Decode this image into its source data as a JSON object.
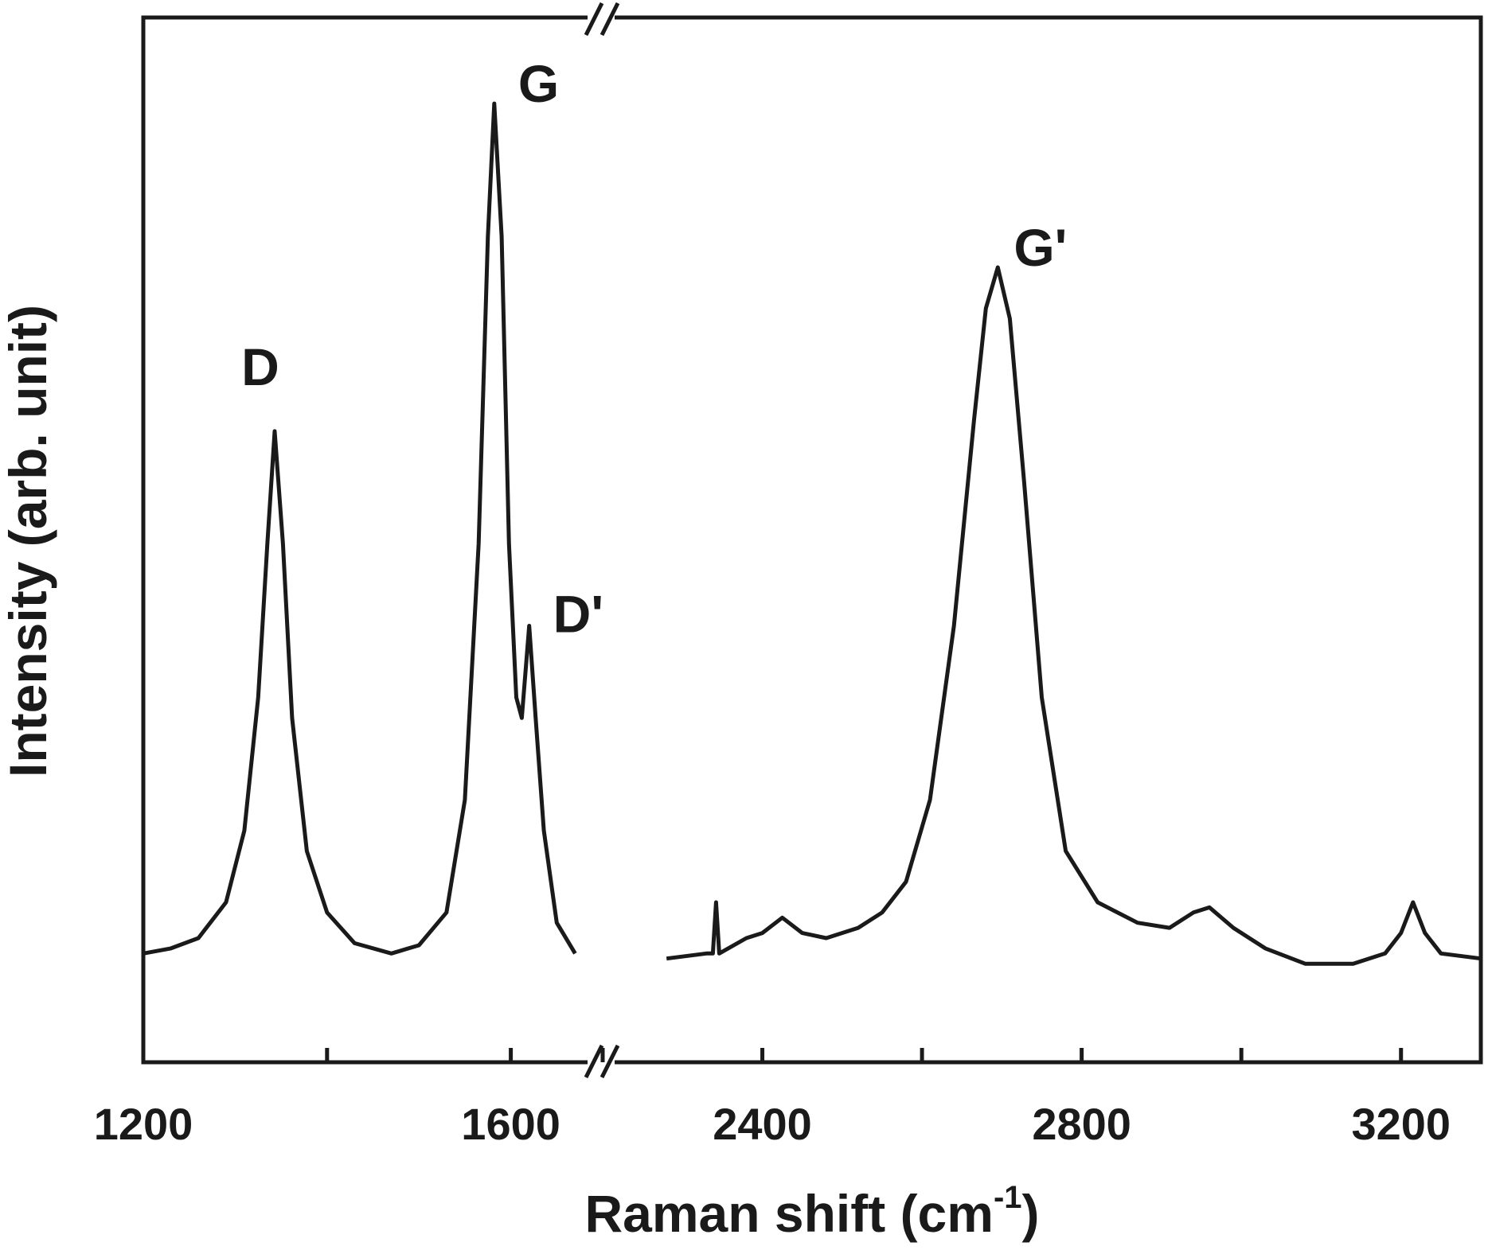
{
  "chart_data": {
    "type": "line",
    "title": "",
    "xlabel": "Raman shift (cm",
    "xlabel_superscript": "-1",
    "xlabel_suffix": ")",
    "ylabel": "Intensity (arb. unit)",
    "axis_break": {
      "left_segment_xlim": [
        1200,
        1700
      ],
      "right_segment_xlim": [
        2200,
        3300
      ]
    },
    "xlim": [
      1200,
      3300
    ],
    "ylim": [
      0,
      1
    ],
    "x_ticks": [
      1200,
      1600,
      2400,
      2800,
      3200
    ],
    "x_tick_labels": [
      "1200",
      "1600",
      "2400",
      "2800",
      "3200"
    ],
    "x_minor_ticks": [
      1400,
      2200,
      2600,
      3000
    ],
    "y_ticks_shown": false,
    "grid": false,
    "legend": "none",
    "line_color": "#1a1a1a",
    "peaks": [
      {
        "label": "D",
        "x": 1343,
        "y": 0.61
      },
      {
        "label": "G",
        "x": 1582,
        "y": 0.93
      },
      {
        "label": "D'",
        "x": 1620,
        "y": 0.42
      },
      {
        "label": "G'",
        "x": 2695,
        "y": 0.77
      }
    ],
    "series": [
      {
        "baseline": 0.1,
        "left_segment": [
          {
            "x": 1200,
            "y": 0.1
          },
          {
            "x": 1230,
            "y": 0.105
          },
          {
            "x": 1260,
            "y": 0.115
          },
          {
            "x": 1290,
            "y": 0.15
          },
          {
            "x": 1310,
            "y": 0.22
          },
          {
            "x": 1325,
            "y": 0.35
          },
          {
            "x": 1335,
            "y": 0.5
          },
          {
            "x": 1343,
            "y": 0.61
          },
          {
            "x": 1352,
            "y": 0.5
          },
          {
            "x": 1362,
            "y": 0.33
          },
          {
            "x": 1378,
            "y": 0.2
          },
          {
            "x": 1400,
            "y": 0.14
          },
          {
            "x": 1430,
            "y": 0.11
          },
          {
            "x": 1470,
            "y": 0.1
          },
          {
            "x": 1500,
            "y": 0.108
          },
          {
            "x": 1530,
            "y": 0.14
          },
          {
            "x": 1550,
            "y": 0.25
          },
          {
            "x": 1565,
            "y": 0.5
          },
          {
            "x": 1575,
            "y": 0.8
          },
          {
            "x": 1582,
            "y": 0.93
          },
          {
            "x": 1590,
            "y": 0.8
          },
          {
            "x": 1598,
            "y": 0.5
          },
          {
            "x": 1606,
            "y": 0.35
          },
          {
            "x": 1612,
            "y": 0.33
          },
          {
            "x": 1620,
            "y": 0.42
          },
          {
            "x": 1627,
            "y": 0.33
          },
          {
            "x": 1636,
            "y": 0.22
          },
          {
            "x": 1650,
            "y": 0.13
          },
          {
            "x": 1670,
            "y": 0.1
          },
          {
            "x": 1700,
            "y": 0.095
          }
        ],
        "right_segment": [
          {
            "x": 2200,
            "y": 0.09
          },
          {
            "x": 2280,
            "y": 0.095
          },
          {
            "x": 2330,
            "y": 0.1
          },
          {
            "x": 2338,
            "y": 0.1
          },
          {
            "x": 2342,
            "y": 0.15
          },
          {
            "x": 2346,
            "y": 0.1
          },
          {
            "x": 2380,
            "y": 0.115
          },
          {
            "x": 2400,
            "y": 0.12
          },
          {
            "x": 2425,
            "y": 0.135
          },
          {
            "x": 2450,
            "y": 0.12
          },
          {
            "x": 2480,
            "y": 0.115
          },
          {
            "x": 2520,
            "y": 0.125
          },
          {
            "x": 2550,
            "y": 0.14
          },
          {
            "x": 2580,
            "y": 0.17
          },
          {
            "x": 2610,
            "y": 0.25
          },
          {
            "x": 2640,
            "y": 0.42
          },
          {
            "x": 2665,
            "y": 0.62
          },
          {
            "x": 2680,
            "y": 0.73
          },
          {
            "x": 2695,
            "y": 0.77
          },
          {
            "x": 2710,
            "y": 0.72
          },
          {
            "x": 2728,
            "y": 0.56
          },
          {
            "x": 2750,
            "y": 0.35
          },
          {
            "x": 2780,
            "y": 0.2
          },
          {
            "x": 2820,
            "y": 0.15
          },
          {
            "x": 2870,
            "y": 0.13
          },
          {
            "x": 2910,
            "y": 0.125
          },
          {
            "x": 2940,
            "y": 0.14
          },
          {
            "x": 2960,
            "y": 0.145
          },
          {
            "x": 2990,
            "y": 0.125
          },
          {
            "x": 3030,
            "y": 0.105
          },
          {
            "x": 3080,
            "y": 0.09
          },
          {
            "x": 3140,
            "y": 0.09
          },
          {
            "x": 3180,
            "y": 0.1
          },
          {
            "x": 3200,
            "y": 0.12
          },
          {
            "x": 3215,
            "y": 0.15
          },
          {
            "x": 3230,
            "y": 0.12
          },
          {
            "x": 3250,
            "y": 0.1
          },
          {
            "x": 3300,
            "y": 0.095
          }
        ]
      }
    ]
  }
}
